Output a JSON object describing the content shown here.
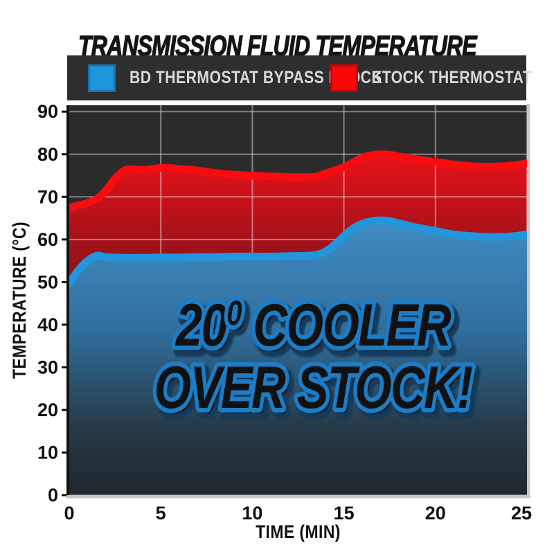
{
  "title": "TRANSMISSION FLUID TEMPERATURE",
  "legend": {
    "items": [
      {
        "label": "BD THERMOSTAT BYPASS BLOCK",
        "color": "#1e96dc"
      },
      {
        "label": "STOCK THERMOSTAT",
        "color": "#fb0609"
      }
    ]
  },
  "annotation": {
    "text": "20° COOLER OVER STOCK!",
    "line1_num": "20",
    "line1_sup": "0",
    "line1_rest": " COOLER",
    "line2": "OVER STOCK!",
    "fill": "#ffffff",
    "stroke": "#1d7cc4",
    "shadow": "#123a5a"
  },
  "colors": {
    "plot_background": "#2b2b2b",
    "grid": "rgba(255,255,255,0.42)",
    "axis_line": "#111111",
    "outer_border": "#c6c6c6",
    "legend_background": "#2e2e2e",
    "legend_text": "#d9d9d9",
    "red_line": "#f80c10",
    "blue_line": "#2196dd",
    "red_fill_top": "#ee1219",
    "red_fill_mid": "#9c121a",
    "red_fill_low": "#6d0f16",
    "red_fill_bottom": "#470a0f",
    "blue_fill_top": "#428fc6",
    "blue_fill_mid": "#306f9e",
    "blue_fill_low": "#273c4b",
    "blue_fill_bottom": "#21262b"
  },
  "chart_data": {
    "type": "area",
    "title": "TRANSMISSION FLUID TEMPERATURE",
    "xlabel": "TIME (MIN)",
    "ylabel": "TEMPERATURE (°C)",
    "xlim": [
      0,
      25
    ],
    "ylim": [
      0,
      90
    ],
    "x_ticks": [
      0,
      5,
      10,
      15,
      20,
      25
    ],
    "y_ticks": [
      0,
      10,
      20,
      30,
      40,
      50,
      60,
      70,
      80,
      90
    ],
    "grid": true,
    "legend_position": "top",
    "annotation": "20° COOLER OVER STOCK!",
    "series": [
      {
        "name": "STOCK THERMOSTAT",
        "color": "#f80c10",
        "x": [
          0,
          0.5,
          1,
          1.5,
          2,
          2.5,
          3,
          3.5,
          4,
          5,
          6,
          7,
          8,
          9,
          10,
          11,
          12,
          13,
          13.5,
          14,
          15,
          16,
          16.5,
          17,
          17.5,
          18,
          19,
          20,
          21,
          22,
          23,
          24,
          24.5,
          25
        ],
        "values": [
          67.5,
          68.0,
          68.6,
          69.5,
          71.5,
          74.3,
          76.2,
          76.5,
          76.3,
          76.8,
          76.6,
          76.2,
          75.6,
          75.2,
          75.0,
          74.8,
          74.7,
          74.7,
          74.8,
          75.5,
          77.0,
          79.2,
          79.8,
          80.0,
          79.9,
          79.5,
          78.8,
          78.2,
          77.6,
          77.2,
          77.1,
          77.3,
          77.5,
          77.9
        ]
      },
      {
        "name": "BD THERMOSTAT BYPASS BLOCK",
        "color": "#2196dd",
        "x": [
          0,
          0.5,
          1,
          1.5,
          2,
          3,
          4,
          5,
          6,
          7,
          8,
          9,
          10,
          11,
          12,
          13,
          13.5,
          14,
          14.5,
          15,
          15.5,
          16,
          16.5,
          17,
          17.5,
          18,
          19,
          20,
          21,
          22,
          23,
          24,
          24.5,
          25
        ],
        "values": [
          49.8,
          52.8,
          55.0,
          56.2,
          55.9,
          55.7,
          55.7,
          55.8,
          55.8,
          55.9,
          55.9,
          56.0,
          56.0,
          56.0,
          56.1,
          56.2,
          56.4,
          57.2,
          58.8,
          60.8,
          62.6,
          63.7,
          64.3,
          64.5,
          64.3,
          63.8,
          62.8,
          62.0,
          61.2,
          60.8,
          60.6,
          60.7,
          60.9,
          61.2
        ]
      }
    ]
  }
}
